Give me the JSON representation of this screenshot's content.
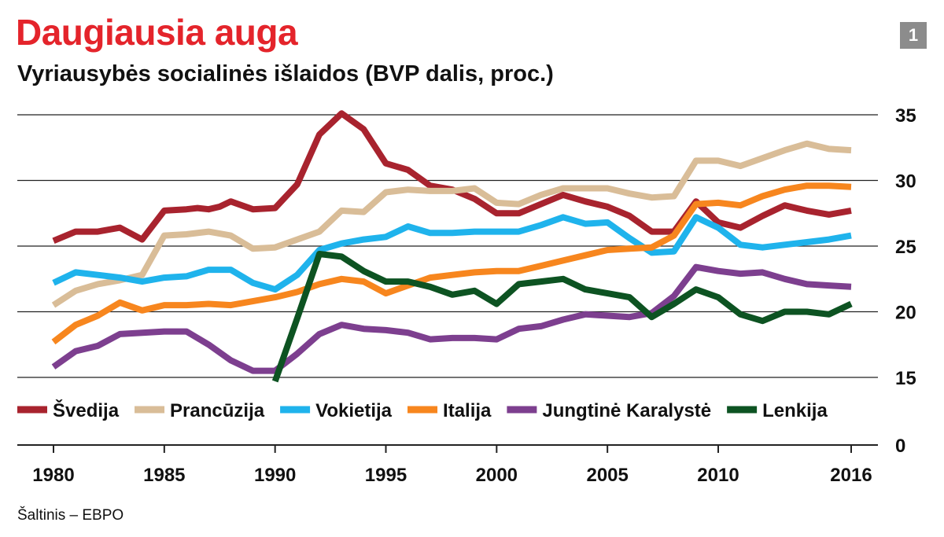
{
  "header": {
    "title": "Daugiausia auga",
    "subtitle": "Vyriausybės socialinės išlaidos (BVP dalis, proc.)",
    "badge": "1"
  },
  "source": "Šaltinis – EBPO",
  "colors": {
    "title": "#e4242b",
    "badge": "#8c8c8c",
    "gridline": "#222222"
  },
  "chart_data": {
    "type": "line",
    "title": "Vyriausybės socialinės išlaidos (BVP dalis, proc.)",
    "xlabel": "",
    "ylabel": "",
    "xlim": [
      1980,
      2016
    ],
    "y_ticks": [
      35,
      30,
      25,
      20,
      15,
      0
    ],
    "y_axis_break": "0 shown below broken axis; plotted range 15–35",
    "ylim": [
      15,
      35
    ],
    "x_ticks": [
      1980,
      1985,
      1990,
      1995,
      2000,
      2005,
      2010,
      2016
    ],
    "x_tick_labels": [
      "1980",
      "1985",
      "1990",
      "1995",
      "2000",
      "2005",
      "2010",
      "2016"
    ],
    "legend_position": "bottom-left inside plot",
    "series": [
      {
        "name": "Švedija",
        "color": "#a8232e",
        "points": [
          [
            1980,
            25.4
          ],
          [
            1981,
            26.1
          ],
          [
            1982,
            26.1
          ],
          [
            1983,
            26.4
          ],
          [
            1984,
            25.5
          ],
          [
            1985,
            27.7
          ],
          [
            1986,
            27.8
          ],
          [
            1986.5,
            27.9
          ],
          [
            1987,
            27.8
          ],
          [
            1987.5,
            28.0
          ],
          [
            1988,
            28.4
          ],
          [
            1989,
            27.8
          ],
          [
            1990,
            27.9
          ],
          [
            1991,
            29.7
          ],
          [
            1992,
            33.5
          ],
          [
            1993,
            35.1
          ],
          [
            1994,
            33.9
          ],
          [
            1995,
            31.3
          ],
          [
            1996,
            30.8
          ],
          [
            1997,
            29.6
          ],
          [
            1998,
            29.3
          ],
          [
            1999,
            28.6
          ],
          [
            2000,
            27.5
          ],
          [
            2001,
            27.5
          ],
          [
            2002,
            28.2
          ],
          [
            2003,
            28.9
          ],
          [
            2004,
            28.4
          ],
          [
            2005,
            28.0
          ],
          [
            2006,
            27.3
          ],
          [
            2007,
            26.1
          ],
          [
            2008,
            26.1
          ],
          [
            2009,
            28.4
          ],
          [
            2010,
            26.8
          ],
          [
            2011,
            26.4
          ],
          [
            2012,
            27.3
          ],
          [
            2013,
            28.1
          ],
          [
            2014,
            27.7
          ],
          [
            2015,
            27.4
          ],
          [
            2016,
            27.7
          ]
        ]
      },
      {
        "name": "Prancūzija",
        "color": "#d9bd98",
        "points": [
          [
            1980,
            20.5
          ],
          [
            1981,
            21.6
          ],
          [
            1982,
            22.1
          ],
          [
            1983,
            22.4
          ],
          [
            1984,
            22.8
          ],
          [
            1985,
            25.8
          ],
          [
            1986,
            25.9
          ],
          [
            1987,
            26.1
          ],
          [
            1988,
            25.8
          ],
          [
            1989,
            24.8
          ],
          [
            1990,
            24.9
          ],
          [
            1991,
            25.5
          ],
          [
            1992,
            26.1
          ],
          [
            1993,
            27.7
          ],
          [
            1994,
            27.6
          ],
          [
            1995,
            29.1
          ],
          [
            1996,
            29.3
          ],
          [
            1997,
            29.2
          ],
          [
            1998,
            29.2
          ],
          [
            1999,
            29.4
          ],
          [
            2000,
            28.3
          ],
          [
            2001,
            28.2
          ],
          [
            2002,
            28.9
          ],
          [
            2003,
            29.4
          ],
          [
            2004,
            29.4
          ],
          [
            2005,
            29.4
          ],
          [
            2006,
            29.0
          ],
          [
            2007,
            28.7
          ],
          [
            2008,
            28.8
          ],
          [
            2009,
            31.5
          ],
          [
            2010,
            31.5
          ],
          [
            2011,
            31.1
          ],
          [
            2012,
            31.7
          ],
          [
            2013,
            32.3
          ],
          [
            2014,
            32.8
          ],
          [
            2015,
            32.4
          ],
          [
            2016,
            32.3
          ]
        ]
      },
      {
        "name": "Vokietija",
        "color": "#1fb3ec",
        "points": [
          [
            1980,
            22.2
          ],
          [
            1981,
            23.0
          ],
          [
            1982,
            22.8
          ],
          [
            1983,
            22.6
          ],
          [
            1984,
            22.3
          ],
          [
            1985,
            22.6
          ],
          [
            1986,
            22.7
          ],
          [
            1987,
            23.2
          ],
          [
            1988,
            23.2
          ],
          [
            1989,
            22.2
          ],
          [
            1990,
            21.7
          ],
          [
            1991,
            22.8
          ],
          [
            1992,
            24.7
          ],
          [
            1993,
            25.2
          ],
          [
            1994,
            25.5
          ],
          [
            1995,
            25.7
          ],
          [
            1996,
            26.5
          ],
          [
            1997,
            26.0
          ],
          [
            1998,
            26.0
          ],
          [
            1999,
            26.1
          ],
          [
            2000,
            26.1
          ],
          [
            2001,
            26.1
          ],
          [
            2002,
            26.6
          ],
          [
            2003,
            27.2
          ],
          [
            2004,
            26.7
          ],
          [
            2005,
            26.8
          ],
          [
            2006,
            25.6
          ],
          [
            2007,
            24.5
          ],
          [
            2008,
            24.6
          ],
          [
            2009,
            27.2
          ],
          [
            2010,
            26.4
          ],
          [
            2011,
            25.1
          ],
          [
            2012,
            24.9
          ],
          [
            2013,
            25.1
          ],
          [
            2014,
            25.3
          ],
          [
            2015,
            25.5
          ],
          [
            2016,
            25.8
          ]
        ]
      },
      {
        "name": "Italija",
        "color": "#f7861e",
        "points": [
          [
            1980,
            17.7
          ],
          [
            1981,
            19.0
          ],
          [
            1982,
            19.7
          ],
          [
            1983,
            20.7
          ],
          [
            1984,
            20.1
          ],
          [
            1985,
            20.5
          ],
          [
            1986,
            20.5
          ],
          [
            1987,
            20.6
          ],
          [
            1988,
            20.5
          ],
          [
            1989,
            20.8
          ],
          [
            1990,
            21.1
          ],
          [
            1991,
            21.5
          ],
          [
            1992,
            22.1
          ],
          [
            1993,
            22.5
          ],
          [
            1994,
            22.3
          ],
          [
            1995,
            21.4
          ],
          [
            1996,
            22.0
          ],
          [
            1997,
            22.6
          ],
          [
            1998,
            22.8
          ],
          [
            1999,
            23.0
          ],
          [
            2000,
            23.1
          ],
          [
            2001,
            23.1
          ],
          [
            2002,
            23.5
          ],
          [
            2003,
            23.9
          ],
          [
            2004,
            24.3
          ],
          [
            2005,
            24.7
          ],
          [
            2006,
            24.8
          ],
          [
            2007,
            24.9
          ],
          [
            2008,
            25.8
          ],
          [
            2009,
            28.2
          ],
          [
            2010,
            28.3
          ],
          [
            2011,
            28.1
          ],
          [
            2012,
            28.8
          ],
          [
            2013,
            29.3
          ],
          [
            2014,
            29.6
          ],
          [
            2015,
            29.6
          ],
          [
            2016,
            29.5
          ]
        ]
      },
      {
        "name": "Jungtinė Karalystė",
        "color": "#7d3f8f",
        "points": [
          [
            1980,
            15.8
          ],
          [
            1981,
            17.0
          ],
          [
            1982,
            17.4
          ],
          [
            1983,
            18.3
          ],
          [
            1984,
            18.4
          ],
          [
            1985,
            18.5
          ],
          [
            1986,
            18.5
          ],
          [
            1987,
            17.5
          ],
          [
            1988,
            16.3
          ],
          [
            1989,
            15.5
          ],
          [
            1990,
            15.5
          ],
          [
            1991,
            16.8
          ],
          [
            1992,
            18.3
          ],
          [
            1993,
            19.0
          ],
          [
            1994,
            18.7
          ],
          [
            1995,
            18.6
          ],
          [
            1996,
            18.4
          ],
          [
            1997,
            17.9
          ],
          [
            1998,
            18.0
          ],
          [
            1999,
            18.0
          ],
          [
            2000,
            17.9
          ],
          [
            2001,
            18.7
          ],
          [
            2002,
            18.9
          ],
          [
            2003,
            19.4
          ],
          [
            2004,
            19.8
          ],
          [
            2005,
            19.7
          ],
          [
            2006,
            19.6
          ],
          [
            2007,
            19.9
          ],
          [
            2008,
            21.2
          ],
          [
            2009,
            23.4
          ],
          [
            2010,
            23.1
          ],
          [
            2011,
            22.9
          ],
          [
            2012,
            23.0
          ],
          [
            2013,
            22.5
          ],
          [
            2014,
            22.1
          ],
          [
            2015,
            22.0
          ],
          [
            2016,
            21.9
          ]
        ]
      },
      {
        "name": "Lenkija",
        "color": "#0d5322",
        "points": [
          [
            1990,
            14.7
          ],
          [
            1991,
            19.5
          ],
          [
            1992,
            24.4
          ],
          [
            1993,
            24.2
          ],
          [
            1994,
            23.1
          ],
          [
            1995,
            22.3
          ],
          [
            1996,
            22.3
          ],
          [
            1997,
            21.9
          ],
          [
            1998,
            21.3
          ],
          [
            1999,
            21.6
          ],
          [
            2000,
            20.6
          ],
          [
            2001,
            22.1
          ],
          [
            2002,
            22.3
          ],
          [
            2003,
            22.5
          ],
          [
            2004,
            21.7
          ],
          [
            2005,
            21.4
          ],
          [
            2006,
            21.1
          ],
          [
            2007,
            19.6
          ],
          [
            2008,
            20.6
          ],
          [
            2009,
            21.7
          ],
          [
            2010,
            21.1
          ],
          [
            2011,
            19.8
          ],
          [
            2012,
            19.3
          ],
          [
            2013,
            20.0
          ],
          [
            2014,
            20.0
          ],
          [
            2015,
            19.8
          ],
          [
            2016,
            20.6
          ]
        ]
      }
    ]
  }
}
